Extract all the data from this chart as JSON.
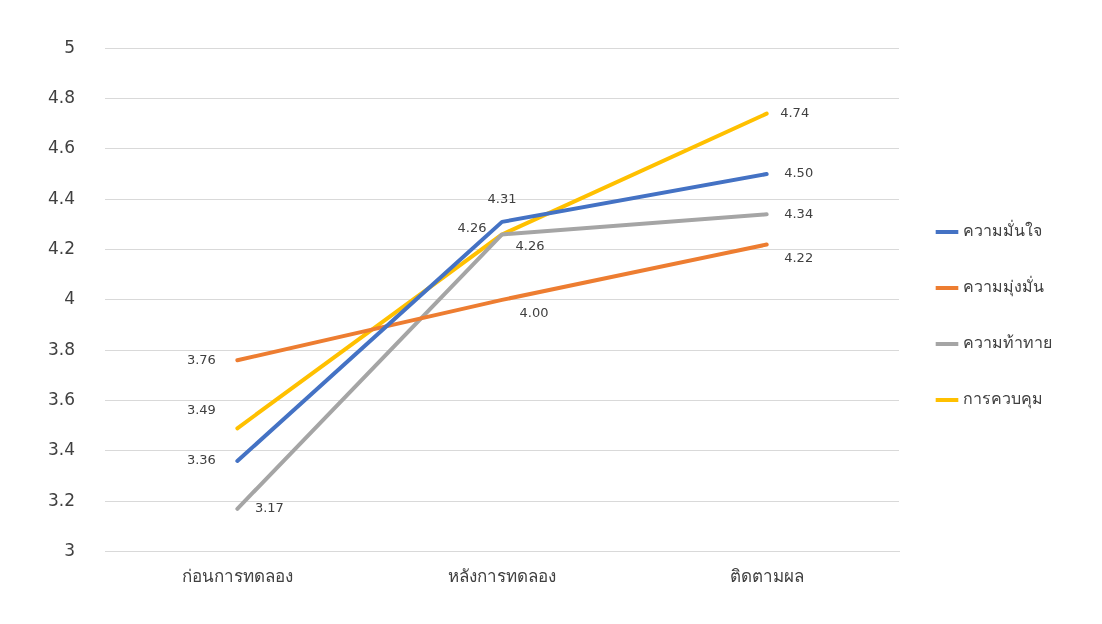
{
  "chart_data": {
    "type": "line",
    "categories": [
      "ก่อนการทดลอง",
      "หลังการทดลอง",
      "ติดตามผล"
    ],
    "series": [
      {
        "name": "ความมั่นใจ",
        "color": "#4472c4",
        "values": [
          3.36,
          4.31,
          4.5
        ],
        "value_labels": [
          "3.36",
          "4.31",
          "4.50"
        ]
      },
      {
        "name": "ความมุ่งมั่น",
        "color": "#ed7d31",
        "values": [
          3.76,
          4.0,
          4.22
        ],
        "value_labels": [
          "3.76",
          "4.00",
          "4.22"
        ]
      },
      {
        "name": "ความท้าทาย",
        "color": "#a5a5a5",
        "values": [
          3.17,
          4.26,
          4.34
        ],
        "value_labels": [
          "3.17",
          "4.26",
          "4.34"
        ]
      },
      {
        "name": "การควบคุม",
        "color": "#ffc000",
        "values": [
          3.49,
          4.26,
          4.74
        ],
        "value_labels": [
          "3.49",
          "4.26",
          "4.74"
        ]
      }
    ],
    "ylim": [
      3,
      5
    ],
    "yticks": [
      3,
      3.2,
      3.4,
      3.6,
      3.8,
      4,
      4.2,
      4.4,
      4.6,
      4.8,
      5
    ],
    "grid": "y",
    "legend": "right",
    "marker": "none",
    "line_style": "solid"
  }
}
